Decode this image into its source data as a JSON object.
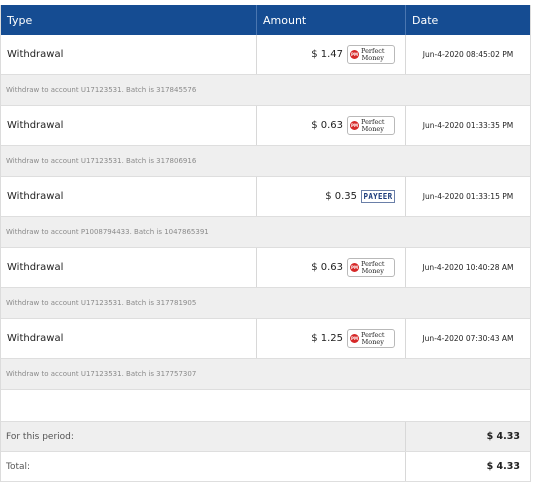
{
  "headers": {
    "type": "Type",
    "amount": "Amount",
    "date": "Date"
  },
  "rows": [
    {
      "type": "Withdrawal",
      "amount": "$ 1.47",
      "method": "perfect-money",
      "date": "Jun-4-2020 08:45:02 PM",
      "detail": "Withdraw to account U17123531. Batch is 317845576"
    },
    {
      "type": "Withdrawal",
      "amount": "$ 0.63",
      "method": "perfect-money",
      "date": "Jun-4-2020 01:33:35 PM",
      "detail": "Withdraw to account U17123531. Batch is 317806916"
    },
    {
      "type": "Withdrawal",
      "amount": "$ 0.35",
      "method": "payeer",
      "date": "Jun-4-2020 01:33:15 PM",
      "detail": "Withdraw to account P1008794433. Batch is 1047865391"
    },
    {
      "type": "Withdrawal",
      "amount": "$ 0.63",
      "method": "perfect-money",
      "date": "Jun-4-2020 10:40:28 AM",
      "detail": "Withdraw to account U17123531. Batch is 317781905"
    },
    {
      "type": "Withdrawal",
      "amount": "$ 1.25",
      "method": "perfect-money",
      "date": "Jun-4-2020 07:30:43 AM",
      "detail": "Withdraw to account U17123531. Batch is 317757307"
    }
  ],
  "logos": {
    "pm_circle": "PM",
    "pm_line1": "Perfect",
    "pm_line2": "Money",
    "payeer": "PAYEER"
  },
  "totals": {
    "period_label": "For this period:",
    "period_value": "$ 4.33",
    "total_label": "Total:",
    "total_value": "$ 4.33"
  },
  "colors": {
    "header_bg": "#154c92",
    "sub_bg": "#efefef",
    "pm_red": "#d62828"
  }
}
